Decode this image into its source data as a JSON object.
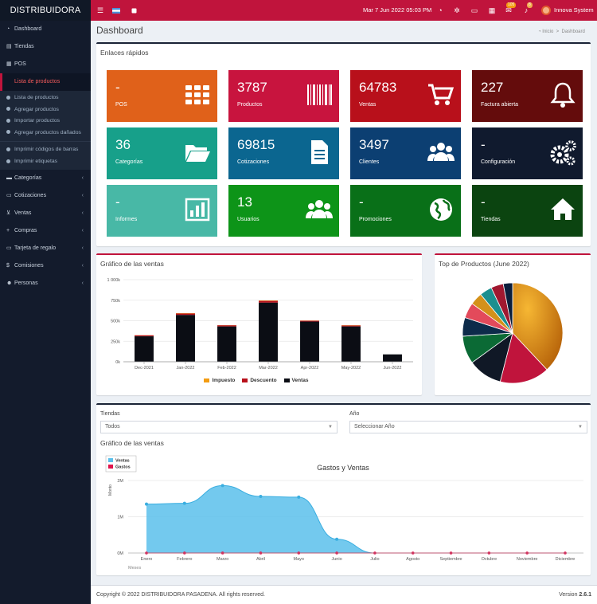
{
  "brand": "DISTRIBUIDORA",
  "topbar": {
    "datetime": "Mar 7 Jun 2022 05:03 PM",
    "badge_a": "105",
    "badge_b": "8",
    "user": "Innova System"
  },
  "sidebar": {
    "items": [
      {
        "label": "Dashboard",
        "icon": "dashboard-icon"
      },
      {
        "label": "Tiendas",
        "icon": "store-icon"
      },
      {
        "label": "POS",
        "icon": "grid-icon"
      },
      {
        "label": "Lista de productos",
        "icon": "barcode-icon"
      }
    ],
    "subitems": [
      "Lista de productos",
      "Agregar productos",
      "Importar productos",
      "Agregar productos dañados",
      "Imprimir códigos de barras",
      "Imprimir etiquetas"
    ],
    "groups": [
      {
        "label": "Categorías",
        "icon": "folder-icon"
      },
      {
        "label": "Cotizaciones",
        "icon": "quote-icon"
      },
      {
        "label": "Ventas",
        "icon": "cart-icon"
      },
      {
        "label": "Compras",
        "icon": "plus-icon"
      },
      {
        "label": "Tarjeta de regalo",
        "icon": "gift-icon"
      },
      {
        "label": "Comisiones",
        "icon": "dollar-icon"
      },
      {
        "label": "Personas",
        "icon": "users-icon"
      }
    ]
  },
  "page": {
    "title": "Dashboard",
    "breadcrumb_home": "Inicio",
    "breadcrumb_current": "Dashboard"
  },
  "quick_links": {
    "title": "Enlaces rápidos",
    "tiles": [
      {
        "value": "-",
        "label": "POS",
        "color": "#e0611a",
        "icon": "grid-icon"
      },
      {
        "value": "3787",
        "label": "Productos",
        "color": "#c8143e",
        "icon": "barcode-icon"
      },
      {
        "value": "64783",
        "label": "Ventas",
        "color": "#b8101b",
        "icon": "cart-icon"
      },
      {
        "value": "227",
        "label": "Factura abierta",
        "color": "#640c0c",
        "icon": "bell-icon"
      },
      {
        "value": "36",
        "label": "Categorías",
        "color": "#17a08a",
        "icon": "folder-icon"
      },
      {
        "value": "69815",
        "label": "Cotizaciones",
        "color": "#0b6690",
        "icon": "document-icon"
      },
      {
        "value": "3497",
        "label": "Clientes",
        "color": "#0c3f72",
        "icon": "users-icon"
      },
      {
        "value": "-",
        "label": "Configuración",
        "color": "#101a2e",
        "icon": "gears-icon"
      },
      {
        "value": "-",
        "label": "Informes",
        "color": "#48b8a6",
        "icon": "chart-icon"
      },
      {
        "value": "13",
        "label": "Usuarios",
        "color": "#0d9418",
        "icon": "users-icon"
      },
      {
        "value": "-",
        "label": "Promociones",
        "color": "#097018",
        "icon": "globe-icon"
      },
      {
        "value": "-",
        "label": "Tiendas",
        "color": "#0b4410",
        "icon": "home-icon"
      }
    ]
  },
  "sales_chart": {
    "title": "Gráfico de las ventas",
    "chart_data": {
      "type": "bar",
      "categories": [
        "Dec-2021",
        "Jan-2022",
        "Feb-2022",
        "Mar-2022",
        "Apr-2022",
        "May-2022",
        "Jun-2022"
      ],
      "series": [
        {
          "name": "Ventas",
          "color": "#0b0d14",
          "values": [
            310000,
            570000,
            430000,
            720000,
            490000,
            430000,
            90000
          ]
        },
        {
          "name": "Descuento",
          "color": "#b8101b",
          "values": [
            12000,
            18000,
            14000,
            22000,
            10000,
            12000,
            0
          ]
        },
        {
          "name": "Impuesto",
          "color": "#f39c12",
          "values": [
            2000,
            4000,
            3000,
            5000,
            2000,
            3000,
            0
          ]
        }
      ],
      "legend": [
        "Impuesto",
        "Descuento",
        "Ventas"
      ],
      "y_ticks": [
        "0k",
        "250k",
        "500k",
        "750k",
        "1 000k"
      ],
      "ylim": [
        0,
        1000000
      ],
      "stacked": true,
      "grid": true,
      "legend_position": "bottom"
    }
  },
  "top_products": {
    "title": "Top de Productos (June 2022)",
    "chart_data": {
      "type": "pie",
      "values": [
        38,
        16,
        11,
        9,
        6,
        5,
        4,
        4,
        4,
        3
      ],
      "colors": [
        "#f39c12",
        "#c0143c",
        "#101826",
        "#0b6a35",
        "#0d2b4a",
        "#e34a5b",
        "#d4911a",
        "#1b8f8f",
        "#a01830",
        "#0b1e3c"
      ]
    }
  },
  "filters": {
    "store_label": "Tiendas",
    "store_value": "Todos",
    "year_label": "Año",
    "year_value": "Seleccionar Año"
  },
  "expenses_chart": {
    "title": "Gráfico de las ventas",
    "chart_data": {
      "type": "area",
      "title": "Gastos y Ventas",
      "ylabel": "Monto",
      "xlabel": "Meses",
      "categories": [
        "Enero",
        "Febrero",
        "Marzo",
        "Abril",
        "Mayo",
        "Junio",
        "Julio",
        "Agosto",
        "Septiembre",
        "Octubre",
        "Noviembre",
        "Diciembre"
      ],
      "series": [
        {
          "name": "Ventas",
          "color": "#5bc0eb",
          "values": [
            1350000,
            1370000,
            1860000,
            1560000,
            1540000,
            380000,
            0,
            0,
            0,
            0,
            0,
            0
          ]
        },
        {
          "name": "Gastos",
          "color": "#e0144c",
          "values": [
            0,
            0,
            0,
            0,
            0,
            0,
            0,
            0,
            0,
            0,
            0,
            0
          ]
        }
      ],
      "y_ticks": [
        "0M",
        "1M",
        "2M"
      ],
      "ylim": [
        0,
        2000000
      ],
      "grid": true,
      "legend_position": "top-left"
    }
  },
  "footer": {
    "copyright": "Copyright © 2022 DISTRIBUIDORA PASADENA. All rights reserved.",
    "version_label": "Version",
    "version_value": "2.6.1"
  }
}
